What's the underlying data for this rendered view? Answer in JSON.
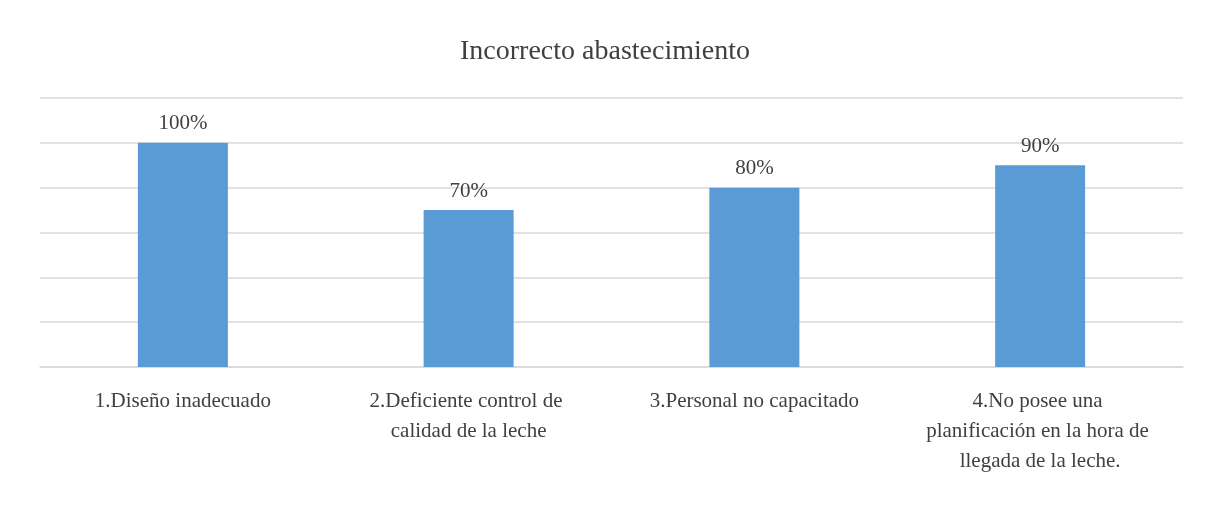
{
  "chart_data": {
    "type": "bar",
    "title": "Incorrecto abastecimiento",
    "categories": [
      "1.Diseño inadecuado",
      "2.Deficiente control de calidad de la leche",
      "3.Personal no capacitado",
      "4.No posee una planificación en la hora de llegada de la leche."
    ],
    "values": [
      100,
      70,
      80,
      90
    ],
    "value_labels": [
      "100%",
      "70%",
      "80%",
      "90%"
    ],
    "color": "#5b9bd5",
    "ylim": [
      0,
      120
    ],
    "yticks": [
      {
        "value": 0,
        "label": null
      },
      {
        "value": 20,
        "label": null
      },
      {
        "value": 40,
        "label": null
      },
      {
        "value": 60,
        "label": null
      },
      {
        "value": 80,
        "label": null
      },
      {
        "value": 100,
        "label": null
      },
      {
        "value": 120,
        "label": null
      }
    ],
    "grid": "y",
    "tick_labels": "x"
  }
}
